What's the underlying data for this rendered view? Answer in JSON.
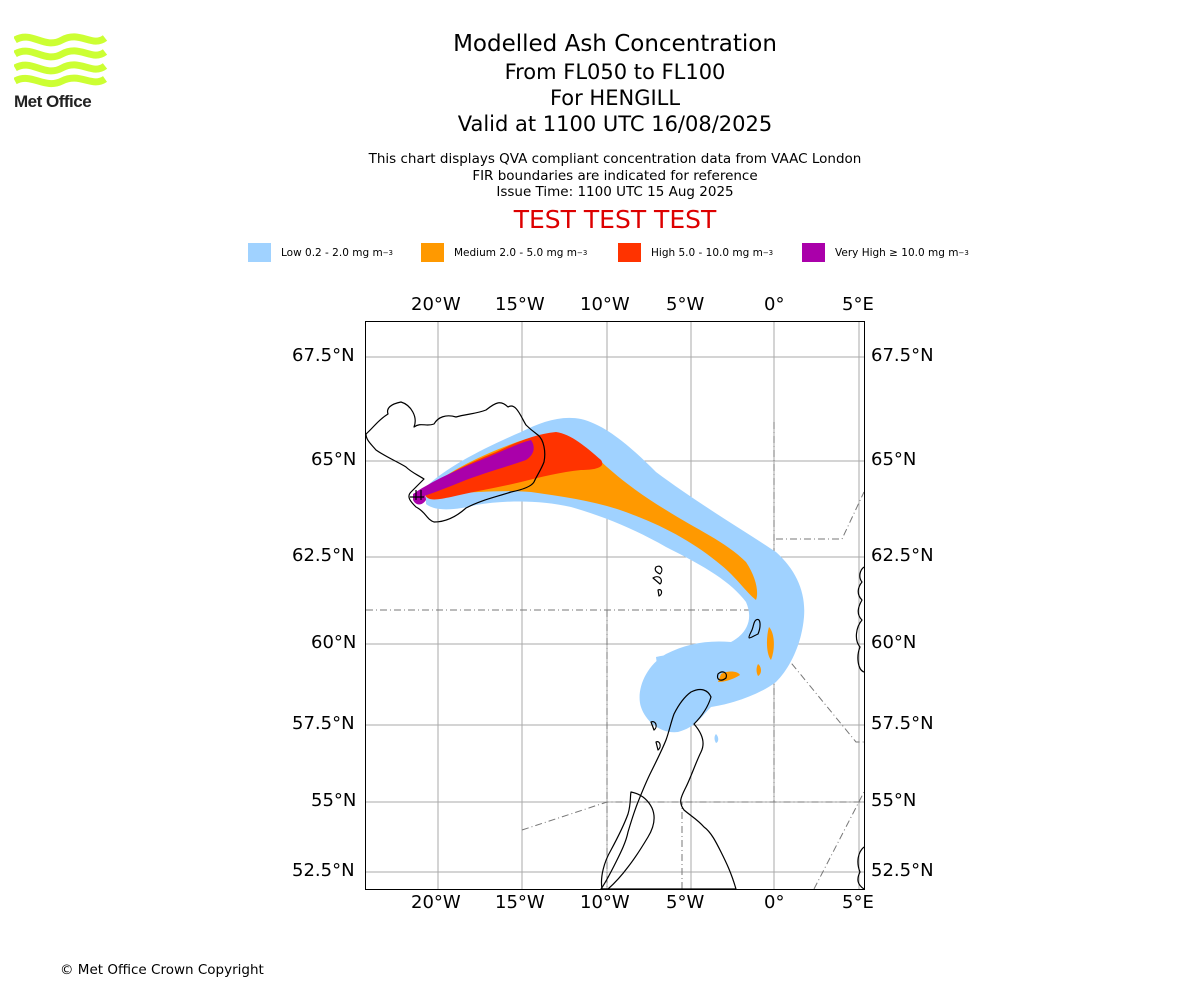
{
  "brand": {
    "name": "Met Office",
    "logo_color": "#ccff33"
  },
  "title": {
    "main": "Modelled Ash Concentration",
    "levels": "From FL050 to FL100",
    "location": "For HENGILL",
    "valid": "Valid at 1100 UTC 16/08/2025"
  },
  "subtitle": {
    "line1": "This chart displays QVA compliant concentration data from VAAC London",
    "line2": "FIR boundaries are indicated for reference",
    "issue": "Issue Time: 1100 UTC 15 Aug 2025"
  },
  "test_banner": "TEST TEST TEST",
  "legend": [
    {
      "label": "Low 0.2 - 2.0 mg m",
      "unit_exp": "−3",
      "color": "#a0d2ff"
    },
    {
      "label": "Medium 2.0 - 5.0 mg m",
      "unit_exp": "−3",
      "color": "#ff9900"
    },
    {
      "label": "High 5.0 - 10.0 mg m",
      "unit_exp": "−3",
      "color": "#ff3300"
    },
    {
      "label": "Very High  ≥  10.0 mg m",
      "unit_exp": "−3",
      "color": "#aa00aa"
    }
  ],
  "map": {
    "lon_labels": [
      "20°W",
      "15°W",
      "10°W",
      "5°W",
      "0°",
      "5°E"
    ],
    "lat_labels": [
      "67.5°N",
      "65°N",
      "62.5°N",
      "60°N",
      "57.5°N",
      "55°N",
      "52.5°N"
    ],
    "gridlines": true,
    "colors": {
      "coast": "#000000",
      "grid": "#aaaaaa",
      "fir": "#777777"
    }
  },
  "copyright": "© Met Office Crown Copyright"
}
